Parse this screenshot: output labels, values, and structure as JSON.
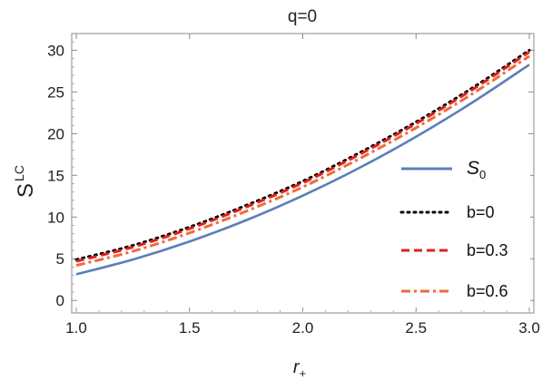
{
  "chart_data": {
    "type": "line",
    "title": "q=0",
    "xlabel": {
      "base": "r",
      "sub": "+"
    },
    "ylabel": {
      "base": "S",
      "sup": "LC"
    },
    "xlim": [
      0.98,
      3.02
    ],
    "ylim": [
      -1.5,
      32
    ],
    "xticks": [
      1.0,
      1.5,
      2.0,
      2.5,
      3.0
    ],
    "xtick_labels": [
      "1.0",
      "1.5",
      "2.0",
      "2.5",
      "3.0"
    ],
    "yticks": [
      0,
      5,
      10,
      15,
      20,
      25,
      30
    ],
    "ytick_labels": [
      "0",
      "5",
      "10",
      "15",
      "20",
      "25",
      "30"
    ],
    "grid": false,
    "legend_position": "right",
    "x": [
      1.0,
      1.25,
      1.5,
      1.75,
      2.0,
      2.25,
      2.5,
      2.75,
      3.0
    ],
    "series": [
      {
        "name": "S0",
        "label_base": "S",
        "label_sub": "0",
        "color": "#5b7fb8",
        "style": "solid",
        "values": [
          3.14,
          4.91,
          7.07,
          9.62,
          12.57,
          15.9,
          19.63,
          23.76,
          28.27
        ]
      },
      {
        "name": "b=0",
        "label_base": "b=0",
        "label_sub": "",
        "color": "#000000",
        "style": "dotted",
        "values": [
          4.9,
          6.6,
          8.8,
          11.4,
          14.3,
          17.7,
          21.4,
          25.5,
          30.0
        ]
      },
      {
        "name": "b=0.3",
        "label_base": "b=0.3",
        "label_sub": "",
        "color": "#e0201b",
        "style": "dashed",
        "values": [
          4.7,
          6.4,
          8.6,
          11.2,
          14.1,
          17.5,
          21.2,
          25.3,
          29.8
        ]
      },
      {
        "name": "b=0.6",
        "label_base": "b=0.6",
        "label_sub": "",
        "color": "#ee6a3e",
        "style": "dashdot",
        "values": [
          4.2,
          5.9,
          8.1,
          10.7,
          13.6,
          17.0,
          20.7,
          24.8,
          29.3
        ]
      }
    ]
  }
}
